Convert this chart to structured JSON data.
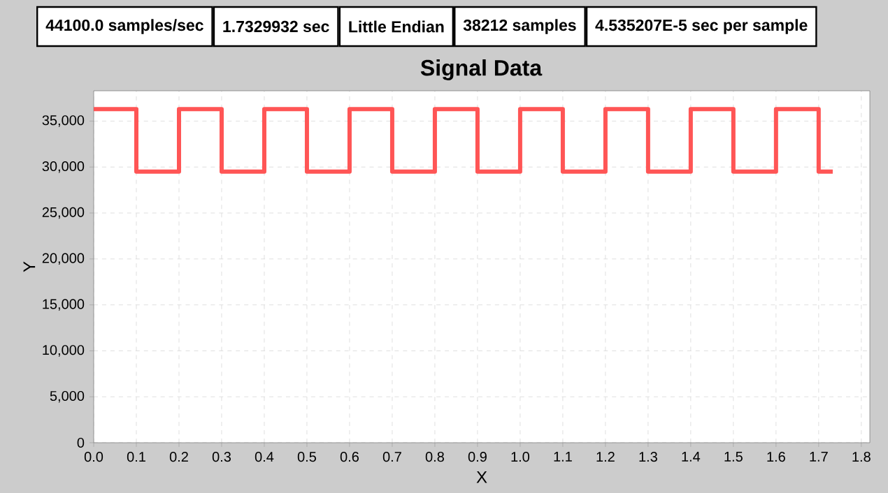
{
  "chart_data": {
    "type": "line",
    "title": "Signal Data",
    "xlabel": "X",
    "ylabel": "Y",
    "annotations": [
      "44100.0 samples/sec",
      "1.7329932 sec",
      "Little Endian",
      "38212 samples",
      "4.535207E-5 sec per sample"
    ],
    "series": [
      {
        "color": "#ff5555",
        "x": [
          0,
          0.1,
          0.1,
          0.2,
          0.2,
          0.3,
          0.3,
          0.4,
          0.4,
          0.5,
          0.5,
          0.6,
          0.6,
          0.7,
          0.7,
          0.8,
          0.8,
          0.9,
          0.9,
          1.0,
          1.0,
          1.1,
          1.1,
          1.2,
          1.2,
          1.3,
          1.3,
          1.4,
          1.4,
          1.5,
          1.5,
          1.6,
          1.6,
          1.7,
          1.7,
          1.733
        ],
        "values": [
          36300,
          36300,
          29500,
          29500,
          36300,
          36300,
          29500,
          29500,
          36300,
          36300,
          29500,
          29500,
          36300,
          36300,
          29500,
          29500,
          36300,
          36300,
          29500,
          29500,
          36300,
          36300,
          29500,
          29500,
          36300,
          36300,
          29500,
          29500,
          36300,
          36300,
          29500,
          29500,
          36300,
          36300,
          29500,
          29500
        ]
      }
    ],
    "xlim": [
      0,
      1.82
    ],
    "ylim": [
      0,
      38300
    ],
    "xticks": [
      {
        "value": 0,
        "label": "0.0"
      },
      {
        "value": 0.1,
        "label": "0.1"
      },
      {
        "value": 0.2,
        "label": "0.2"
      },
      {
        "value": 0.3,
        "label": "0.3"
      },
      {
        "value": 0.4,
        "label": "0.4"
      },
      {
        "value": 0.5,
        "label": "0.5"
      },
      {
        "value": 0.6,
        "label": "0.6"
      },
      {
        "value": 0.7,
        "label": "0.7"
      },
      {
        "value": 0.8,
        "label": "0.8"
      },
      {
        "value": 0.9,
        "label": "0.9"
      },
      {
        "value": 1.0,
        "label": "1.0"
      },
      {
        "value": 1.1,
        "label": "1.1"
      },
      {
        "value": 1.2,
        "label": "1.2"
      },
      {
        "value": 1.3,
        "label": "1.3"
      },
      {
        "value": 1.4,
        "label": "1.4"
      },
      {
        "value": 1.5,
        "label": "1.5"
      },
      {
        "value": 1.6,
        "label": "1.6"
      },
      {
        "value": 1.7,
        "label": "1.7"
      },
      {
        "value": 1.8,
        "label": "1.8"
      }
    ],
    "yticks": [
      0,
      {
        "value": 5000,
        "label": "5,000"
      },
      {
        "value": 10000,
        "label": "10,000"
      },
      {
        "value": 15000,
        "label": "15,000"
      },
      {
        "value": 20000,
        "label": "20,000"
      },
      {
        "value": 25000,
        "label": "25,000"
      },
      {
        "value": 30000,
        "label": "30,000"
      },
      {
        "value": 35000,
        "label": "35,000"
      }
    ],
    "grid": true,
    "line_style": "solid"
  }
}
